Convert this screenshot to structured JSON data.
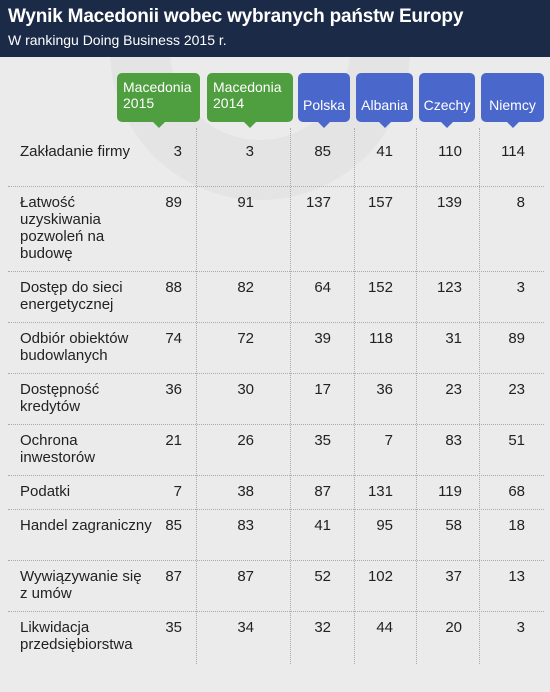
{
  "header": {
    "title": "Wynik Macedonii wobec wybranych państw Europy",
    "subtitle": "W rankingu Doing Business 2015 r."
  },
  "colors": {
    "header_bg": "#1b2a47",
    "macedonia_green": "#4f9e3f",
    "country_blue": "#4a67cc",
    "background": "#ebebeb"
  },
  "chart_data": {
    "type": "table",
    "title": "Wynik Macedonii wobec wybranych państw Europy",
    "subtitle": "W rankingu Doing Business 2015 r.",
    "columns": [
      {
        "label": "Macedonia 2015",
        "color": "green"
      },
      {
        "label": "Macedonia 2014",
        "color": "green"
      },
      {
        "label": "Polska",
        "color": "blue"
      },
      {
        "label": "Albania",
        "color": "blue"
      },
      {
        "label": "Czechy",
        "color": "blue"
      },
      {
        "label": "Niemcy",
        "color": "blue"
      }
    ],
    "rows": [
      {
        "label": "Zakładanie firmy",
        "values": [
          3,
          3,
          85,
          41,
          110,
          114
        ]
      },
      {
        "label": "Łatwość uzyskiwania pozwoleń na budowę",
        "values": [
          89,
          91,
          137,
          157,
          139,
          8
        ]
      },
      {
        "label": "Dostęp do sieci energetycznej",
        "values": [
          88,
          82,
          64,
          152,
          123,
          3
        ]
      },
      {
        "label": "Odbiór obiektów budowlanych",
        "values": [
          74,
          72,
          39,
          118,
          31,
          89
        ]
      },
      {
        "label": "Dostępność kredytów",
        "values": [
          36,
          30,
          17,
          36,
          23,
          23
        ]
      },
      {
        "label": "Ochrona inwestorów",
        "values": [
          21,
          26,
          35,
          7,
          83,
          51
        ]
      },
      {
        "label": "Podatki",
        "values": [
          7,
          38,
          87,
          131,
          119,
          68
        ]
      },
      {
        "label": "Handel zagraniczny",
        "values": [
          85,
          83,
          41,
          95,
          58,
          18
        ]
      },
      {
        "label": "Wywiązywanie się z umów",
        "values": [
          87,
          87,
          52,
          102,
          37,
          13
        ]
      },
      {
        "label": "Likwidacja przedsiębiorstwa",
        "values": [
          35,
          34,
          32,
          44,
          20,
          3
        ]
      }
    ]
  }
}
